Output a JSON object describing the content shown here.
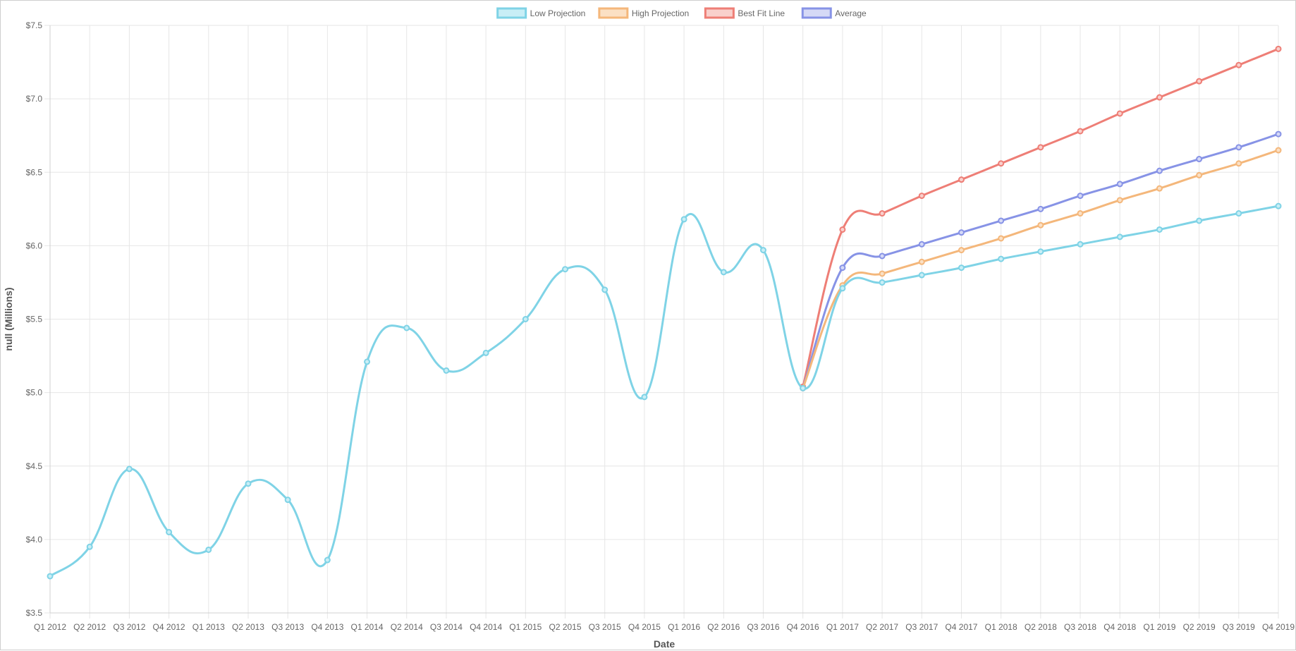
{
  "chart_data": {
    "type": "line",
    "xlabel": "Date",
    "ylabel": "null (Millions)",
    "ylim": [
      3.5,
      7.5
    ],
    "yticks": [
      {
        "value": 3.5,
        "label": "$3.5"
      },
      {
        "value": 4.0,
        "label": "$4.0"
      },
      {
        "value": 4.5,
        "label": "$4.5"
      },
      {
        "value": 5.0,
        "label": "$5.0"
      },
      {
        "value": 5.5,
        "label": "$5.5"
      },
      {
        "value": 6.0,
        "label": "$6.0"
      },
      {
        "value": 6.5,
        "label": "$6.5"
      },
      {
        "value": 7.0,
        "label": "$7.0"
      },
      {
        "value": 7.5,
        "label": "$7.5"
      }
    ],
    "categories": [
      "Q1 2012",
      "Q2 2012",
      "Q3 2012",
      "Q4 2012",
      "Q1 2013",
      "Q2 2013",
      "Q3 2013",
      "Q4 2013",
      "Q1 2014",
      "Q2 2014",
      "Q3 2014",
      "Q4 2014",
      "Q1 2015",
      "Q2 2015",
      "Q3 2015",
      "Q4 2015",
      "Q1 2016",
      "Q2 2016",
      "Q3 2016",
      "Q4 2016",
      "Q1 2017",
      "Q2 2017",
      "Q3 2017",
      "Q4 2017",
      "Q1 2018",
      "Q2 2018",
      "Q3 2018",
      "Q4 2018",
      "Q1 2019",
      "Q2 2019",
      "Q3 2019",
      "Q4 2019"
    ],
    "grid": true,
    "legend_position": "top-center",
    "series": [
      {
        "name": "Best Fit Line",
        "color": "#ee7e76",
        "fill": "#f9d0cc",
        "values": [
          null,
          null,
          null,
          null,
          null,
          null,
          null,
          null,
          null,
          null,
          null,
          null,
          null,
          null,
          null,
          null,
          null,
          null,
          null,
          5.04,
          6.11,
          6.22,
          6.34,
          6.45,
          6.56,
          6.67,
          6.78,
          6.9,
          7.01,
          7.12,
          7.23,
          7.34
        ]
      },
      {
        "name": "Average",
        "color": "#8793e6",
        "fill": "#d5d9f6",
        "values": [
          null,
          null,
          null,
          null,
          null,
          null,
          null,
          null,
          null,
          null,
          null,
          null,
          null,
          null,
          null,
          null,
          null,
          null,
          null,
          5.03,
          5.85,
          5.93,
          6.01,
          6.09,
          6.17,
          6.25,
          6.34,
          6.42,
          6.51,
          6.59,
          6.67,
          6.76
        ]
      },
      {
        "name": "High Projection",
        "color": "#f4b77b",
        "fill": "#fbe0c4",
        "values": [
          null,
          null,
          null,
          null,
          null,
          null,
          null,
          null,
          null,
          null,
          null,
          null,
          null,
          null,
          null,
          null,
          null,
          null,
          null,
          5.03,
          5.73,
          5.81,
          5.89,
          5.97,
          6.05,
          6.14,
          6.22,
          6.31,
          6.39,
          6.48,
          6.56,
          6.65
        ]
      },
      {
        "name": "Low Projection",
        "color": "#7fd3e6",
        "fill": "#c8eef6",
        "values": [
          3.75,
          3.95,
          4.48,
          4.05,
          3.93,
          4.38,
          4.27,
          3.86,
          5.21,
          5.44,
          5.15,
          5.27,
          5.5,
          5.84,
          5.7,
          4.97,
          6.18,
          5.82,
          5.97,
          5.03,
          5.71,
          5.75,
          5.8,
          5.85,
          5.91,
          5.96,
          6.01,
          6.06,
          6.11,
          6.17,
          6.22,
          6.27
        ]
      }
    ],
    "legend_order": [
      "Low Projection",
      "High Projection",
      "Best Fit Line",
      "Average"
    ]
  }
}
